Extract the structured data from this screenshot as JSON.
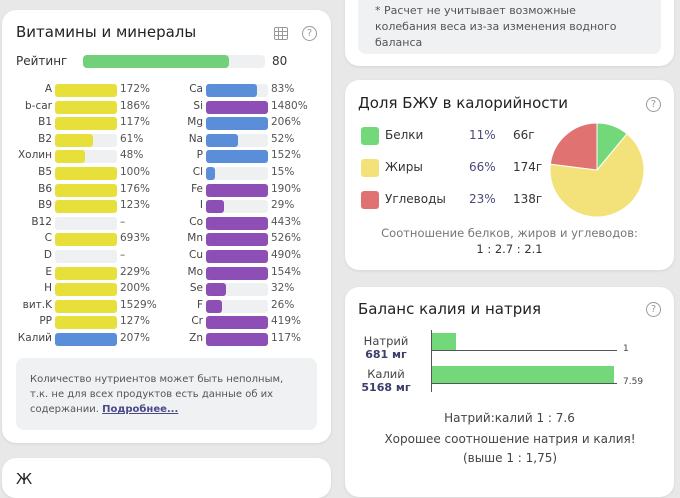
{
  "vitamins_card": {
    "title": "Витамины и минералы",
    "rating_label": "Рейтинг",
    "rating_value": "80",
    "rating_percent": 80,
    "left": [
      {
        "name": "A",
        "value": "172%",
        "pct": 172,
        "color": "yellow"
      },
      {
        "name": "b-car",
        "value": "186%",
        "pct": 186,
        "color": "yellow"
      },
      {
        "name": "B1",
        "value": "117%",
        "pct": 117,
        "color": "yellow"
      },
      {
        "name": "B2",
        "value": "61%",
        "pct": 61,
        "color": "yellow"
      },
      {
        "name": "Холин",
        "value": "48%",
        "pct": 48,
        "color": "yellow"
      },
      {
        "name": "B5",
        "value": "100%",
        "pct": 100,
        "color": "yellow"
      },
      {
        "name": "B6",
        "value": "176%",
        "pct": 176,
        "color": "yellow"
      },
      {
        "name": "B9",
        "value": "123%",
        "pct": 123,
        "color": "yellow"
      },
      {
        "name": "B12",
        "value": "–",
        "pct": 0,
        "color": "yellow"
      },
      {
        "name": "C",
        "value": "693%",
        "pct": 693,
        "color": "yellow"
      },
      {
        "name": "D",
        "value": "–",
        "pct": 0,
        "color": "yellow"
      },
      {
        "name": "E",
        "value": "229%",
        "pct": 229,
        "color": "yellow"
      },
      {
        "name": "H",
        "value": "200%",
        "pct": 200,
        "color": "yellow"
      },
      {
        "name": "вит.K",
        "value": "1529%",
        "pct": 1529,
        "color": "yellow"
      },
      {
        "name": "PP",
        "value": "127%",
        "pct": 127,
        "color": "yellow"
      },
      {
        "name": "Калий",
        "value": "207%",
        "pct": 207,
        "color": "blue"
      }
    ],
    "right": [
      {
        "name": "Ca",
        "value": "83%",
        "pct": 83,
        "color": "blue"
      },
      {
        "name": "Si",
        "value": "1480%",
        "pct": 1480,
        "color": "purple"
      },
      {
        "name": "Mg",
        "value": "206%",
        "pct": 206,
        "color": "blue"
      },
      {
        "name": "Na",
        "value": "52%",
        "pct": 52,
        "color": "blue"
      },
      {
        "name": "P",
        "value": "152%",
        "pct": 152,
        "color": "blue"
      },
      {
        "name": "Cl",
        "value": "15%",
        "pct": 15,
        "color": "blue"
      },
      {
        "name": "Fe",
        "value": "190%",
        "pct": 190,
        "color": "purple"
      },
      {
        "name": "I",
        "value": "29%",
        "pct": 29,
        "color": "purple"
      },
      {
        "name": "Co",
        "value": "443%",
        "pct": 443,
        "color": "purple"
      },
      {
        "name": "Mn",
        "value": "526%",
        "pct": 526,
        "color": "purple"
      },
      {
        "name": "Cu",
        "value": "490%",
        "pct": 490,
        "color": "purple"
      },
      {
        "name": "Mo",
        "value": "154%",
        "pct": 154,
        "color": "purple"
      },
      {
        "name": "Se",
        "value": "32%",
        "pct": 32,
        "color": "purple"
      },
      {
        "name": "F",
        "value": "26%",
        "pct": 26,
        "color": "purple"
      },
      {
        "name": "Cr",
        "value": "419%",
        "pct": 419,
        "color": "purple"
      },
      {
        "name": "Zn",
        "value": "117%",
        "pct": 117,
        "color": "purple"
      }
    ],
    "note": "Количество нутриентов может быть неполным, т.к. не для всех продуктов есть данные об их содержании.",
    "note_link": "Подробнее..."
  },
  "colors": {
    "yellow": "#e8e03a",
    "blue": "#5b8ed8",
    "purple": "#8d4fb5",
    "green": "#72d07a",
    "track": "#eef0f2",
    "fat": "#f3e27a",
    "carb": "#e07070"
  },
  "weight_note": {
    "line1": "* Расчет не учитывает возможные",
    "line2": "колебания веса из-за изменения водного",
    "line3": "баланса"
  },
  "bju_card": {
    "title": "Доля БЖУ в калорийности",
    "items": [
      {
        "name": "Белки",
        "percent": "11%",
        "grams": "66г",
        "share": 11,
        "color": "#72d87a"
      },
      {
        "name": "Жиры",
        "percent": "66%",
        "grams": "174г",
        "share": 66,
        "color": "#f3e27a"
      },
      {
        "name": "Углеводы",
        "percent": "23%",
        "grams": "138г",
        "share": 23,
        "color": "#e07272"
      }
    ],
    "ratio_label": "Соотношение белков, жиров и углеводов:",
    "ratio_value": "1 : 2.7 : 2.1"
  },
  "potassium_card": {
    "title": "Баланс калия и натрия",
    "bars": [
      {
        "name": "Натрий",
        "amount": "681 мг",
        "value": 1,
        "value_label": "1"
      },
      {
        "name": "Калий",
        "amount": "5168 мг",
        "value": 7.59,
        "value_label": "7.59"
      }
    ],
    "ratio_text": "Натрий:калий 1 : 7.6",
    "verdict": "Хорошее соотношение натрия и калия! (выше 1 : 1,75)"
  },
  "next_card": {
    "title_partial": "Ж"
  }
}
